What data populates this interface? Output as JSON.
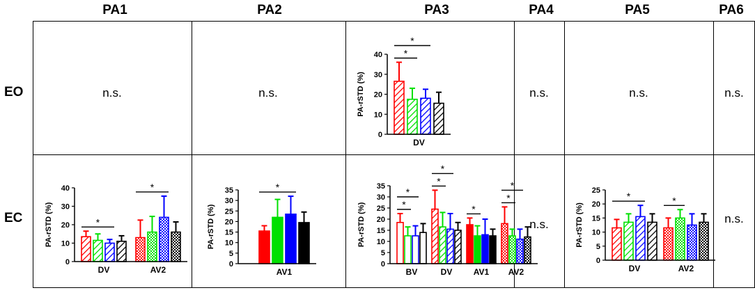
{
  "columns": [
    "PA1",
    "PA2",
    "PA3",
    "PA4",
    "PA5",
    "PA6"
  ],
  "rows": [
    "EO",
    "EC"
  ],
  "ns_label": "n.s.",
  "sig_symbol": "*",
  "ylabel": "PA-rSTD (%)",
  "colors": {
    "red": "#ff0000",
    "green": "#00e000",
    "blue": "#0000ff",
    "black": "#000000"
  },
  "chart_data": [
    {
      "id": "eo-pa3",
      "type": "bar",
      "title": "",
      "ylabel": "PA-rSTD (%)",
      "ylim": [
        0,
        40
      ],
      "yticks": [
        0,
        10,
        20,
        30,
        40
      ],
      "groups": [
        {
          "label": "DV",
          "fill": "hatch",
          "bars": [
            {
              "color": "red",
              "value": 26.5,
              "err": 9.5
            },
            {
              "color": "green",
              "value": 17.5,
              "err": 5.5
            },
            {
              "color": "blue",
              "value": 18,
              "err": 4.5
            },
            {
              "color": "black",
              "value": 15.5,
              "err": 5.5
            }
          ]
        }
      ],
      "sig": [
        {
          "from": [
            0,
            0
          ],
          "to": [
            0,
            1
          ],
          "label": "*"
        },
        {
          "from": [
            0,
            0
          ],
          "to": [
            0,
            2
          ],
          "label": "*"
        }
      ]
    },
    {
      "id": "ec-pa1",
      "type": "bar",
      "title": "",
      "ylabel": "PA-rSTD (%)",
      "ylim": [
        0,
        40
      ],
      "yticks": [
        0,
        10,
        20,
        30,
        40
      ],
      "groups": [
        {
          "label": "DV",
          "fill": "hatch",
          "bars": [
            {
              "color": "red",
              "value": 13.5,
              "err": 3
            },
            {
              "color": "green",
              "value": 11.5,
              "err": 3.5
            },
            {
              "color": "blue",
              "value": 10,
              "err": 2
            },
            {
              "color": "black",
              "value": 11,
              "err": 3
            }
          ]
        },
        {
          "label": "AV2",
          "fill": "checker",
          "bars": [
            {
              "color": "red",
              "value": 13,
              "err": 9.5
            },
            {
              "color": "green",
              "value": 16,
              "err": 8.5
            },
            {
              "color": "blue",
              "value": 24,
              "err": 11.5
            },
            {
              "color": "black",
              "value": 16,
              "err": 5.5
            }
          ]
        }
      ],
      "sig": [
        {
          "from": [
            0,
            0
          ],
          "to": [
            0,
            2
          ],
          "label": "*"
        },
        {
          "from": [
            1,
            0
          ],
          "to": [
            1,
            2
          ],
          "label": "*"
        }
      ]
    },
    {
      "id": "ec-pa2",
      "type": "bar",
      "title": "",
      "ylabel": "PA-rSTD (%)",
      "ylim": [
        0,
        35
      ],
      "yticks": [
        0,
        5,
        10,
        15,
        20,
        25,
        30,
        35
      ],
      "groups": [
        {
          "label": "AV1",
          "fill": "solid",
          "bars": [
            {
              "color": "red",
              "value": 15.5,
              "err": 2.5
            },
            {
              "color": "green",
              "value": 22,
              "err": 8.5
            },
            {
              "color": "blue",
              "value": 23.5,
              "err": 8.5
            },
            {
              "color": "black",
              "value": 19.5,
              "err": 5
            }
          ]
        }
      ],
      "sig": [
        {
          "from": [
            0,
            0
          ],
          "to": [
            0,
            2
          ],
          "label": "*"
        }
      ]
    },
    {
      "id": "ec-pa3",
      "type": "bar",
      "title": "",
      "ylabel": "PA-rSTD (%)",
      "ylim": [
        0,
        35
      ],
      "yticks": [
        0,
        5,
        10,
        15,
        20,
        25,
        30,
        35
      ],
      "groups": [
        {
          "label": "BV",
          "fill": "outline",
          "bars": [
            {
              "color": "red",
              "value": 18.5,
              "err": 4
            },
            {
              "color": "green",
              "value": 12.5,
              "err": 4
            },
            {
              "color": "blue",
              "value": 12.5,
              "err": 4.5
            },
            {
              "color": "black",
              "value": 14,
              "err": 4
            }
          ]
        },
        {
          "label": "DV",
          "fill": "hatch",
          "bars": [
            {
              "color": "red",
              "value": 24.5,
              "err": 8.5
            },
            {
              "color": "green",
              "value": 16.5,
              "err": 6.5
            },
            {
              "color": "blue",
              "value": 15.5,
              "err": 7
            },
            {
              "color": "black",
              "value": 15,
              "err": 3.5
            }
          ]
        },
        {
          "label": "AV1",
          "fill": "solid",
          "bars": [
            {
              "color": "red",
              "value": 17.5,
              "err": 3
            },
            {
              "color": "green",
              "value": 12.5,
              "err": 4.5
            },
            {
              "color": "blue",
              "value": 13,
              "err": 7
            },
            {
              "color": "black",
              "value": 12.5,
              "err": 3
            }
          ]
        },
        {
          "label": "AV2",
          "fill": "checker",
          "bars": [
            {
              "color": "red",
              "value": 18,
              "err": 7.5
            },
            {
              "color": "green",
              "value": 12.5,
              "err": 3
            },
            {
              "color": "blue",
              "value": 11,
              "err": 4.5
            },
            {
              "color": "black",
              "value": 12,
              "err": 4.5
            }
          ]
        }
      ],
      "sig": [
        {
          "from": [
            0,
            0
          ],
          "to": [
            0,
            1
          ],
          "label": "*"
        },
        {
          "from": [
            0,
            0
          ],
          "to": [
            0,
            2
          ],
          "label": "*"
        },
        {
          "from": [
            1,
            0
          ],
          "to": [
            1,
            1
          ],
          "label": "*"
        },
        {
          "from": [
            1,
            0
          ],
          "to": [
            1,
            2
          ],
          "label": "*"
        },
        {
          "from": [
            2,
            0
          ],
          "to": [
            2,
            1
          ],
          "label": "*"
        },
        {
          "from": [
            3,
            0
          ],
          "to": [
            3,
            1
          ],
          "label": "*"
        },
        {
          "from": [
            3,
            0
          ],
          "to": [
            3,
            2
          ],
          "label": "*"
        }
      ]
    },
    {
      "id": "ec-pa5",
      "type": "bar",
      "title": "",
      "ylabel": "PA-rSTD (%)",
      "ylim": [
        0,
        25
      ],
      "yticks": [
        0,
        5,
        10,
        15,
        20,
        25
      ],
      "groups": [
        {
          "label": "DV",
          "fill": "hatch",
          "bars": [
            {
              "color": "red",
              "value": 11.5,
              "err": 3
            },
            {
              "color": "green",
              "value": 13.5,
              "err": 3
            },
            {
              "color": "blue",
              "value": 15.5,
              "err": 4
            },
            {
              "color": "black",
              "value": 13.5,
              "err": 3
            }
          ]
        },
        {
          "label": "AV2",
          "fill": "checker",
          "bars": [
            {
              "color": "red",
              "value": 11.5,
              "err": 3.5
            },
            {
              "color": "green",
              "value": 15,
              "err": 3
            },
            {
              "color": "blue",
              "value": 12.5,
              "err": 4
            },
            {
              "color": "black",
              "value": 13.5,
              "err": 3
            }
          ]
        }
      ],
      "sig": [
        {
          "from": [
            0,
            0
          ],
          "to": [
            0,
            2
          ],
          "label": "*"
        },
        {
          "from": [
            1,
            0
          ],
          "to": [
            1,
            1
          ],
          "label": "*"
        }
      ]
    }
  ]
}
